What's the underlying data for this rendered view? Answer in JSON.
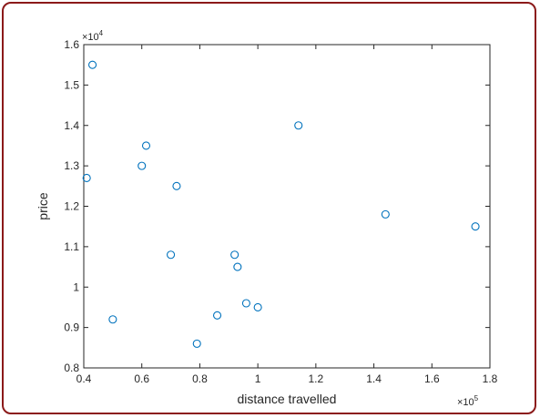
{
  "chart_data": {
    "type": "scatter",
    "title": "",
    "xlabel": "distance travelled",
    "ylabel": "price",
    "x_exponent_label": "×10^5",
    "y_exponent_label": "×10^4",
    "x_exponent_base": "×10",
    "x_exponent_power": "5",
    "y_exponent_base": "×10",
    "y_exponent_power": "4",
    "xlim": [
      0.4,
      1.8
    ],
    "ylim": [
      0.8,
      1.6
    ],
    "xticks": [
      "0.4",
      "0.6",
      "0.8",
      "1",
      "1.2",
      "1.4",
      "1.6",
      "1.8"
    ],
    "yticks": [
      "0.8",
      "0.9",
      "1",
      "1.1",
      "1.2",
      "1.3",
      "1.4",
      "1.5",
      "1.6"
    ],
    "grid": false,
    "marker": "circle-open",
    "color": "#0072bd",
    "points": [
      {
        "x": 0.43,
        "y": 1.55
      },
      {
        "x": 0.41,
        "y": 1.27
      },
      {
        "x": 0.5,
        "y": 0.92
      },
      {
        "x": 0.6,
        "y": 1.3
      },
      {
        "x": 0.615,
        "y": 1.35
      },
      {
        "x": 0.7,
        "y": 1.08
      },
      {
        "x": 0.72,
        "y": 1.25
      },
      {
        "x": 0.79,
        "y": 0.86
      },
      {
        "x": 0.86,
        "y": 0.93
      },
      {
        "x": 0.92,
        "y": 1.08
      },
      {
        "x": 0.93,
        "y": 1.05
      },
      {
        "x": 0.96,
        "y": 0.96
      },
      {
        "x": 1.0,
        "y": 0.95
      },
      {
        "x": 1.14,
        "y": 1.4
      },
      {
        "x": 1.44,
        "y": 1.18
      },
      {
        "x": 1.75,
        "y": 1.15
      }
    ]
  }
}
